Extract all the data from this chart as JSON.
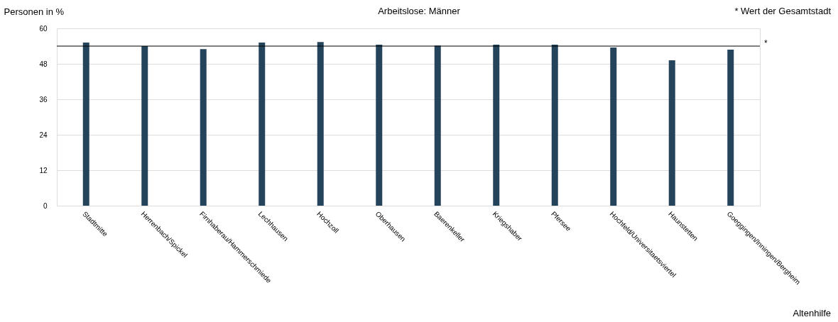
{
  "chart_data": {
    "type": "bar",
    "title": "Arbeitslose: Männer",
    "ylabel": "Personen in %",
    "categories": [
      "Stadtmitte",
      "Herrenbach/Spickel",
      "Firnhaberau/Hammerschmiede",
      "Lechhausen",
      "Hochzoll",
      "Oberhausen",
      "Baerenkeller",
      "Kriegshaber",
      "Pfersee",
      "Hochfeld/Universitaetsviertel",
      "Haunstetten",
      "Goeggingen/Inningen/Bergheim"
    ],
    "values": [
      55.2,
      54.0,
      53.0,
      55.2,
      55.4,
      54.5,
      54.2,
      54.5,
      54.5,
      53.5,
      49.2,
      52.8
    ],
    "color": "#24445c",
    "ylim": [
      0,
      60
    ],
    "yticks": [
      0,
      12,
      24,
      36,
      48,
      60
    ],
    "grid": "y",
    "ref_lines": [
      {
        "axis": "y",
        "value": 54.0,
        "label": "*",
        "color": "#000000"
      }
    ],
    "annotations": [
      "* Wert der Gesamtstadt",
      "Altenhilfe"
    ]
  }
}
